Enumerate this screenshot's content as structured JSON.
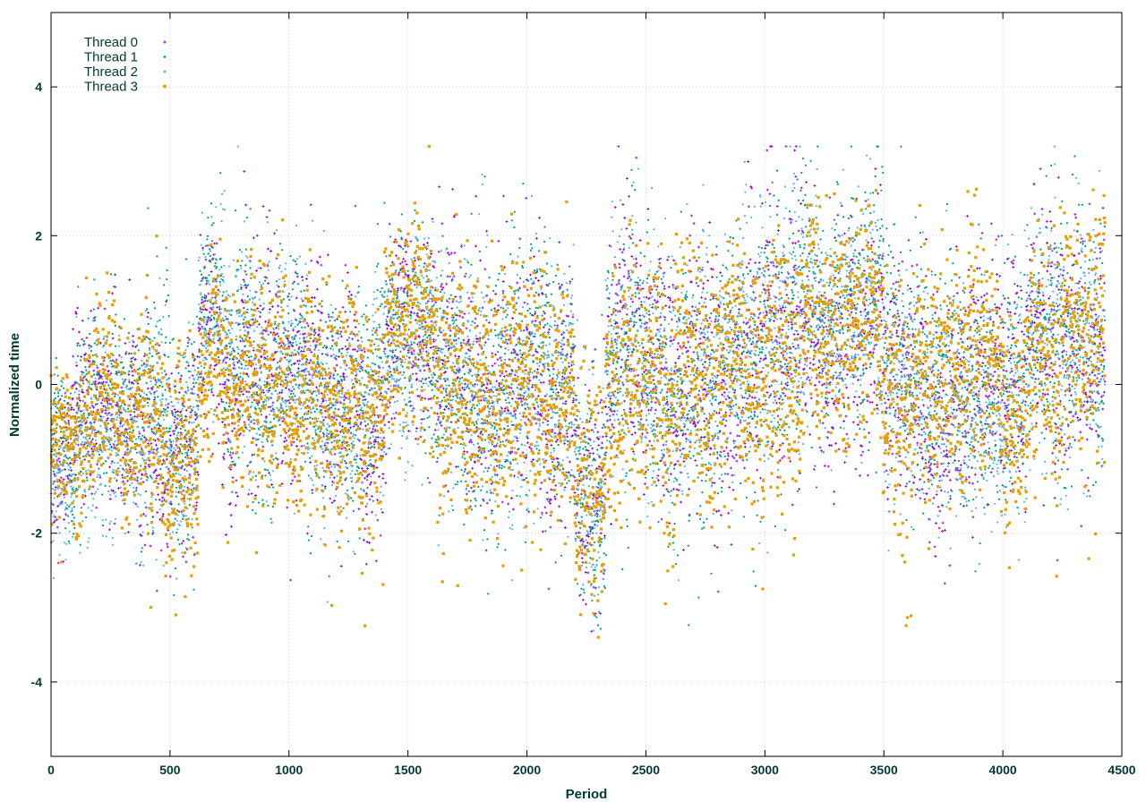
{
  "chart_data": {
    "type": "scatter",
    "title": "",
    "xlabel": "Period",
    "ylabel": "Normalized time",
    "xlim": [
      0,
      4500
    ],
    "ylim": [
      -5,
      5
    ],
    "xticks": [
      0,
      500,
      1000,
      1500,
      2000,
      2500,
      3000,
      3500,
      4000,
      4500
    ],
    "yticks": [
      -4,
      -2,
      0,
      2,
      4
    ],
    "grid": true,
    "legend_position": "top-left",
    "point_count_per_series": 4430,
    "segments": [
      {
        "x0": 0,
        "x1": 100,
        "mean": -1.0,
        "sd": 0.45
      },
      {
        "x0": 100,
        "x1": 350,
        "mean": -0.55,
        "sd": 0.6
      },
      {
        "x0": 350,
        "x1": 620,
        "mean": -0.7,
        "sd": 0.7
      },
      {
        "x0": 620,
        "x1": 720,
        "mean": 0.7,
        "sd": 0.6
      },
      {
        "x0": 720,
        "x1": 1150,
        "mean": 0.0,
        "sd": 0.75
      },
      {
        "x0": 1150,
        "x1": 1400,
        "mean": -0.3,
        "sd": 0.75
      },
      {
        "x0": 1400,
        "x1": 1620,
        "mean": 0.85,
        "sd": 0.65
      },
      {
        "x0": 1620,
        "x1": 2200,
        "mean": 0.0,
        "sd": 0.85
      },
      {
        "x0": 2200,
        "x1": 2330,
        "mean": -1.3,
        "sd": 0.8
      },
      {
        "x0": 2330,
        "x1": 2950,
        "mean": 0.1,
        "sd": 0.85
      },
      {
        "x0": 2950,
        "x1": 3150,
        "mean": 0.5,
        "sd": 0.9
      },
      {
        "x0": 3150,
        "x1": 3500,
        "mean": 0.9,
        "sd": 0.75
      },
      {
        "x0": 3500,
        "x1": 4100,
        "mean": 0.0,
        "sd": 0.8
      },
      {
        "x0": 4100,
        "x1": 4430,
        "mean": 0.6,
        "sd": 0.85
      }
    ],
    "series": [
      {
        "name": "Thread 0",
        "color": "#9400d3",
        "marker": "plus",
        "seed": 11
      },
      {
        "name": "Thread 1",
        "color": "#009e73",
        "marker": "dot",
        "seed": 23
      },
      {
        "name": "Thread 2",
        "color": "#56b4e9",
        "marker": "dot",
        "seed": 37
      },
      {
        "name": "Thread 3",
        "color": "#e69f00",
        "marker": "square",
        "seed": 53
      }
    ]
  }
}
